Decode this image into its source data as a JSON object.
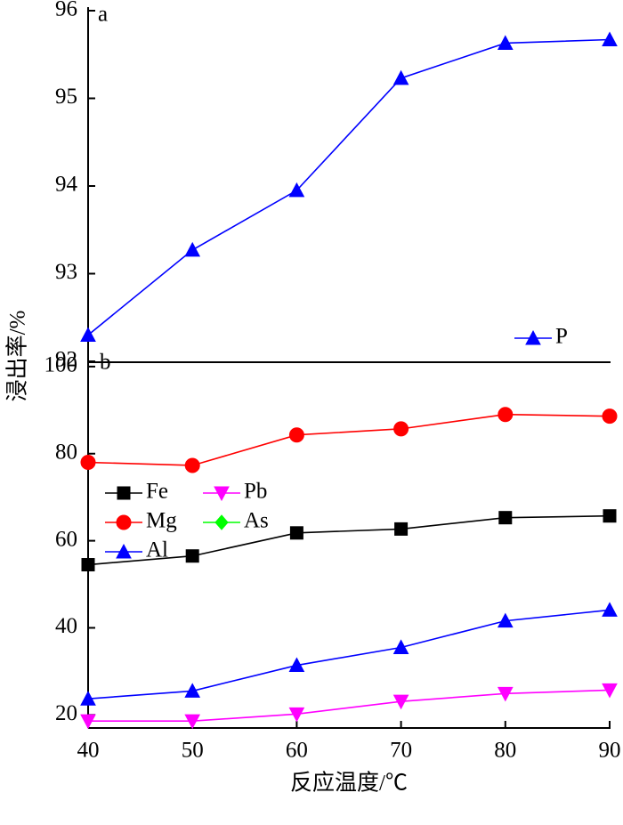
{
  "chart_data": [
    {
      "type": "line",
      "label": "a",
      "ylabel": "浸出率/%",
      "x": [
        40,
        50,
        60,
        70,
        80,
        90
      ],
      "xlim": [
        40,
        90
      ],
      "ylim": [
        92,
        96
      ],
      "yticks": [
        92,
        93,
        94,
        95,
        96
      ],
      "legend": "lower right",
      "series": [
        {
          "name": "P",
          "color": "#0000ff",
          "marker": "^",
          "values": [
            92.3,
            93.27,
            93.95,
            95.23,
            95.63,
            95.67
          ]
        }
      ]
    },
    {
      "type": "line",
      "label": "b",
      "xlabel": "反应温度/℃",
      "x": [
        40,
        50,
        60,
        70,
        80,
        90
      ],
      "xlim": [
        40,
        90
      ],
      "xticks": [
        40,
        50,
        60,
        70,
        80,
        90
      ],
      "ylim": [
        17,
        101
      ],
      "yticks": [
        20,
        40,
        60,
        80,
        100
      ],
      "legend": "upper left",
      "series": [
        {
          "name": "Fe",
          "color": "#000000",
          "marker": "s",
          "values": [
            54.5,
            56.5,
            61.8,
            62.7,
            65.3,
            65.7
          ]
        },
        {
          "name": "Mg",
          "color": "#ff0000",
          "marker": "o",
          "values": [
            78.0,
            77.3,
            84.3,
            85.7,
            89.0,
            88.6
          ]
        },
        {
          "name": "Al",
          "color": "#0000ff",
          "marker": "^",
          "values": [
            23.7,
            25.5,
            31.4,
            35.5,
            41.6,
            44.1
          ]
        },
        {
          "name": "Pb",
          "color": "#ff00ff",
          "marker": "v",
          "values": [
            18.6,
            18.6,
            20.2,
            23.1,
            24.9,
            25.7
          ]
        },
        {
          "name": "As",
          "color": "#00ff00",
          "marker": "D",
          "values": [
            null,
            null,
            null,
            null,
            null,
            null
          ]
        }
      ]
    }
  ]
}
